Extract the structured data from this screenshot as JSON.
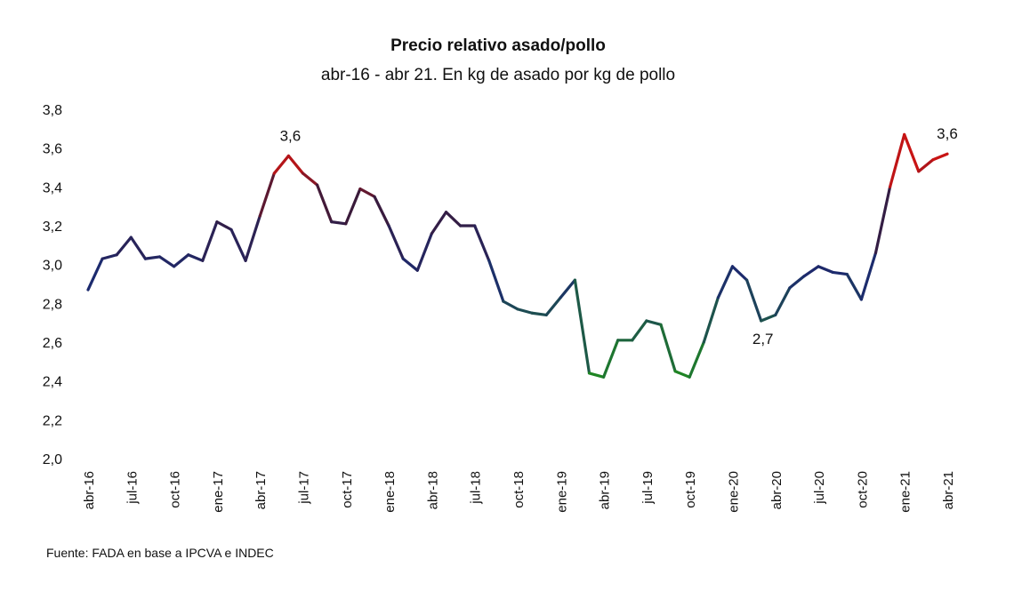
{
  "chart_data": {
    "type": "line",
    "title": "Precio relativo asado/pollo",
    "subtitle": "abr-16 - abr 21. En kg de asado por kg de pollo",
    "xlabel": "",
    "ylabel": "",
    "ylim": [
      2.0,
      3.8
    ],
    "yticks": [
      "2,0",
      "2,2",
      "2,4",
      "2,6",
      "2,8",
      "3,0",
      "3,2",
      "3,4",
      "3,6",
      "3,8"
    ],
    "ytick_values": [
      2.0,
      2.2,
      2.4,
      2.6,
      2.8,
      3.0,
      3.2,
      3.4,
      3.6,
      3.8
    ],
    "grid": false,
    "xtick_labels": [
      "abr-16",
      "jul-16",
      "oct-16",
      "ene-17",
      "abr-17",
      "jul-17",
      "oct-17",
      "ene-18",
      "abr-18",
      "jul-18",
      "oct-18",
      "ene-19",
      "abr-19",
      "jul-19",
      "oct-19",
      "ene-20",
      "abr-20",
      "jul-20",
      "oct-20",
      "ene-21",
      "abr-21"
    ],
    "xtick_every_months": 3,
    "series": [
      {
        "name": "Precio relativo asado/pollo",
        "values": [
          2.87,
          3.03,
          3.05,
          3.14,
          3.03,
          3.04,
          2.99,
          3.05,
          3.02,
          3.22,
          3.18,
          3.02,
          3.25,
          3.47,
          3.56,
          3.47,
          3.41,
          3.22,
          3.21,
          3.39,
          3.35,
          3.2,
          3.03,
          2.97,
          3.16,
          3.27,
          3.2,
          3.2,
          3.02,
          2.81,
          2.77,
          2.75,
          2.74,
          2.83,
          2.92,
          2.44,
          2.42,
          2.61,
          2.61,
          2.71,
          2.69,
          2.45,
          2.42,
          2.6,
          2.83,
          2.99,
          2.92,
          2.71,
          2.74,
          2.88,
          2.94,
          2.99,
          2.96,
          2.95,
          2.82,
          3.06,
          3.4,
          3.67,
          3.48,
          3.54,
          3.57
        ]
      }
    ],
    "annotations": [
      {
        "index": 14,
        "text": "3,6"
      },
      {
        "index": 47,
        "text": "2,7"
      },
      {
        "index": 60,
        "text": "3,6"
      }
    ],
    "colors": {
      "low": "#1f8a1f",
      "mid": "#1c2a6e",
      "midhigh": "#3a1a3a",
      "high": "#c81414"
    },
    "source": "Fuente: FADA en base a IPCVA e INDEC"
  }
}
